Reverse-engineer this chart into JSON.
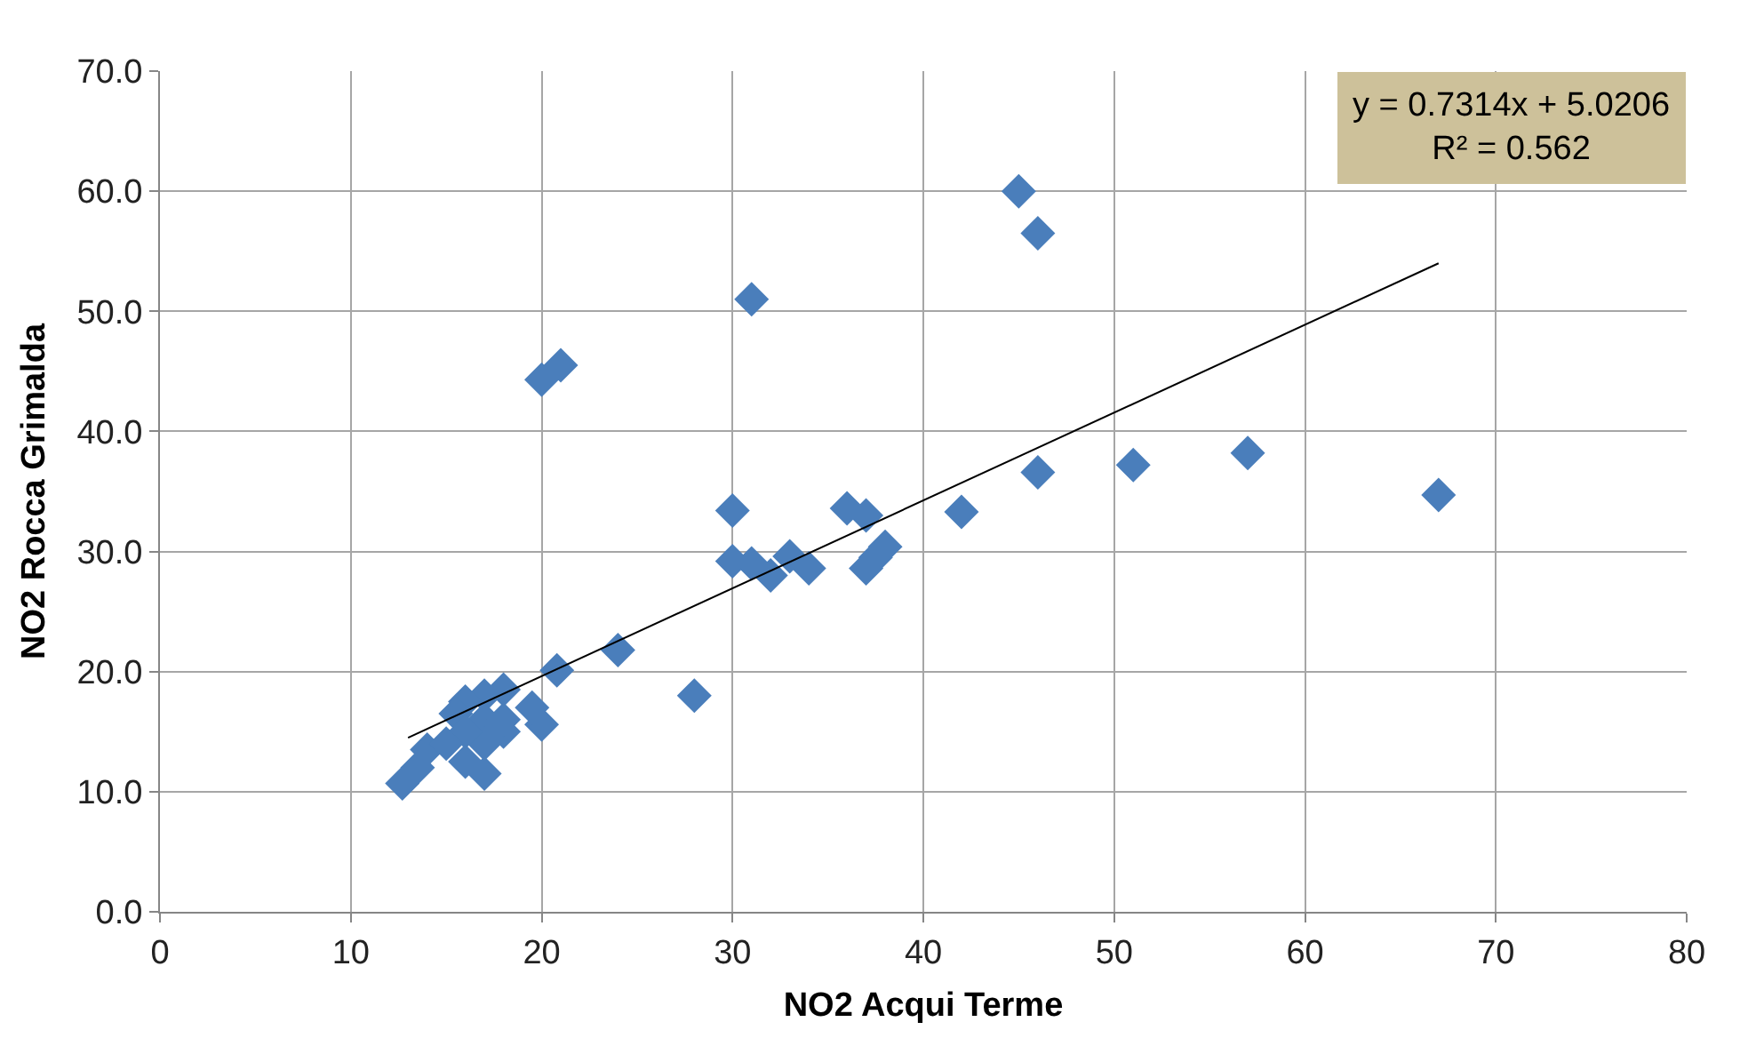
{
  "chart_data": {
    "type": "scatter",
    "xlabel": "NO2 Acqui Terme",
    "ylabel": "NO2 Rocca Grimalda",
    "xlim": [
      0,
      80
    ],
    "xticks": [
      0,
      10,
      20,
      30,
      40,
      50,
      60,
      70,
      80
    ],
    "ylim": [
      0,
      70
    ],
    "yticks": [
      {
        "value": 0,
        "label": "0.0"
      },
      {
        "value": 10,
        "label": "10.0"
      },
      {
        "value": 20,
        "label": "20.0"
      },
      {
        "value": 30,
        "label": "30.0"
      },
      {
        "value": 40,
        "label": "40.0"
      },
      {
        "value": 50,
        "label": "50.0"
      },
      {
        "value": 60,
        "label": "60.0"
      },
      {
        "value": 70,
        "label": "70.0"
      }
    ],
    "grid": true,
    "legend": false,
    "marker": "diamond",
    "annotations": [
      "y = 0.7314x + 5.0206\nR² = 0.562"
    ],
    "series": [
      {
        "color": "#4a7ebb",
        "x": [
          45,
          46,
          31,
          20,
          21,
          67,
          57,
          51,
          46,
          42,
          36,
          37,
          30,
          30,
          31,
          33,
          32,
          34,
          37,
          38,
          37.5,
          28,
          24,
          20.8,
          20,
          19.5,
          18,
          17,
          16,
          15.5,
          17,
          18,
          17,
          16,
          12.7,
          14,
          16,
          17,
          15,
          13.5,
          18
        ],
        "values": [
          60,
          56.5,
          51,
          44.3,
          45.5,
          34.7,
          38.2,
          37.2,
          36.6,
          33.3,
          33.6,
          33,
          33.4,
          29.2,
          29,
          29.6,
          28,
          28.6,
          28.6,
          30.4,
          29.5,
          18,
          21.8,
          20.1,
          15.6,
          17,
          18.5,
          18,
          17.5,
          16.5,
          16,
          15,
          14,
          15,
          10.7,
          13.5,
          12.5,
          11.5,
          14,
          12,
          16
        ]
      },
      {
        "type": "line",
        "marker": "none",
        "color": "#000000",
        "x": [
          13,
          67
        ],
        "values": [
          14.5,
          54.0
        ]
      }
    ]
  }
}
